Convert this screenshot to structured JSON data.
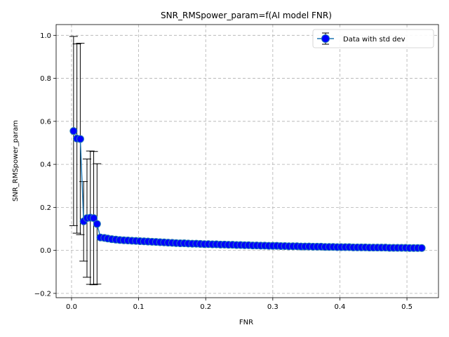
{
  "chart_data": {
    "type": "line",
    "title": "SNR_RMSpower_param=f(AI model FNR)",
    "xlabel": "FNR",
    "ylabel": "SNR_RMSpower_param",
    "xlim": [
      -0.023,
      0.547
    ],
    "ylim": [
      -0.22,
      1.05
    ],
    "x_ticks": [
      0.0,
      0.1,
      0.2,
      0.3,
      0.4,
      0.5
    ],
    "x_tick_labels": [
      "0.0",
      "0.1",
      "0.2",
      "0.3",
      "0.4",
      "0.5"
    ],
    "y_ticks": [
      -0.2,
      0.0,
      0.2,
      0.4,
      0.6,
      0.8,
      1.0
    ],
    "y_tick_labels": [
      "−0.2",
      "0.0",
      "0.2",
      "0.4",
      "0.6",
      "0.8",
      "1.0"
    ],
    "grid": true,
    "legend_position": "top-right",
    "colors": {
      "line": "#1f77b4",
      "marker_face": "#0000ff",
      "marker_edge": "#1f77b4",
      "errorbar": "#000000",
      "grid": "#b0b0b0"
    },
    "series": [
      {
        "name": "Data with std dev",
        "x": [
          0.003,
          0.008,
          0.013,
          0.018,
          0.023,
          0.028,
          0.033,
          0.038,
          0.043,
          0.049,
          0.054,
          0.06,
          0.066,
          0.072,
          0.078,
          0.084,
          0.09,
          0.096,
          0.102,
          0.108,
          0.114,
          0.12,
          0.126,
          0.132,
          0.138,
          0.144,
          0.15,
          0.156,
          0.162,
          0.168,
          0.174,
          0.18,
          0.186,
          0.192,
          0.198,
          0.204,
          0.21,
          0.216,
          0.222,
          0.228,
          0.234,
          0.24,
          0.246,
          0.252,
          0.258,
          0.264,
          0.27,
          0.276,
          0.282,
          0.288,
          0.294,
          0.3,
          0.306,
          0.312,
          0.318,
          0.324,
          0.33,
          0.336,
          0.342,
          0.348,
          0.354,
          0.36,
          0.366,
          0.372,
          0.378,
          0.384,
          0.39,
          0.396,
          0.402,
          0.408,
          0.414,
          0.42,
          0.426,
          0.432,
          0.438,
          0.444,
          0.45,
          0.456,
          0.462,
          0.468,
          0.474,
          0.48,
          0.486,
          0.492,
          0.498,
          0.504,
          0.51,
          0.516,
          0.522
        ],
        "y": [
          0.555,
          0.52,
          0.518,
          0.135,
          0.15,
          0.152,
          0.15,
          0.123,
          0.06,
          0.058,
          0.055,
          0.052,
          0.05,
          0.048,
          0.047,
          0.046,
          0.045,
          0.044,
          0.043,
          0.042,
          0.041,
          0.04,
          0.039,
          0.038,
          0.037,
          0.036,
          0.035,
          0.034,
          0.033,
          0.033,
          0.032,
          0.031,
          0.031,
          0.03,
          0.029,
          0.029,
          0.028,
          0.028,
          0.027,
          0.027,
          0.026,
          0.026,
          0.025,
          0.025,
          0.024,
          0.024,
          0.023,
          0.023,
          0.022,
          0.022,
          0.021,
          0.021,
          0.021,
          0.02,
          0.02,
          0.019,
          0.019,
          0.019,
          0.018,
          0.018,
          0.018,
          0.017,
          0.017,
          0.017,
          0.016,
          0.016,
          0.016,
          0.015,
          0.015,
          0.015,
          0.015,
          0.014,
          0.014,
          0.014,
          0.014,
          0.013,
          0.013,
          0.013,
          0.013,
          0.013,
          0.012,
          0.012,
          0.012,
          0.012,
          0.012,
          0.011,
          0.011,
          0.011,
          0.011
        ],
        "err": [
          0.44,
          0.44,
          0.445,
          0.185,
          0.275,
          0.31,
          0.31,
          0.28,
          0.0,
          0.0,
          0.0,
          0.0,
          0.0,
          0.0,
          0.0,
          0.0,
          0.0,
          0.0,
          0.0,
          0.0,
          0.0,
          0.0,
          0.0,
          0.0,
          0.0,
          0.0,
          0.0,
          0.0,
          0.0,
          0.0,
          0.0,
          0.0,
          0.0,
          0.0,
          0.0,
          0.0,
          0.0,
          0.0,
          0.0,
          0.0,
          0.0,
          0.0,
          0.0,
          0.0,
          0.0,
          0.0,
          0.0,
          0.0,
          0.0,
          0.0,
          0.0,
          0.0,
          0.0,
          0.0,
          0.0,
          0.0,
          0.0,
          0.0,
          0.0,
          0.0,
          0.0,
          0.0,
          0.0,
          0.0,
          0.0,
          0.0,
          0.0,
          0.0,
          0.0,
          0.0,
          0.0,
          0.0,
          0.0,
          0.0,
          0.0,
          0.0,
          0.0,
          0.0,
          0.0,
          0.0,
          0.0,
          0.0,
          0.0,
          0.0,
          0.0,
          0.0,
          0.0,
          0.0,
          0.0
        ]
      }
    ]
  }
}
